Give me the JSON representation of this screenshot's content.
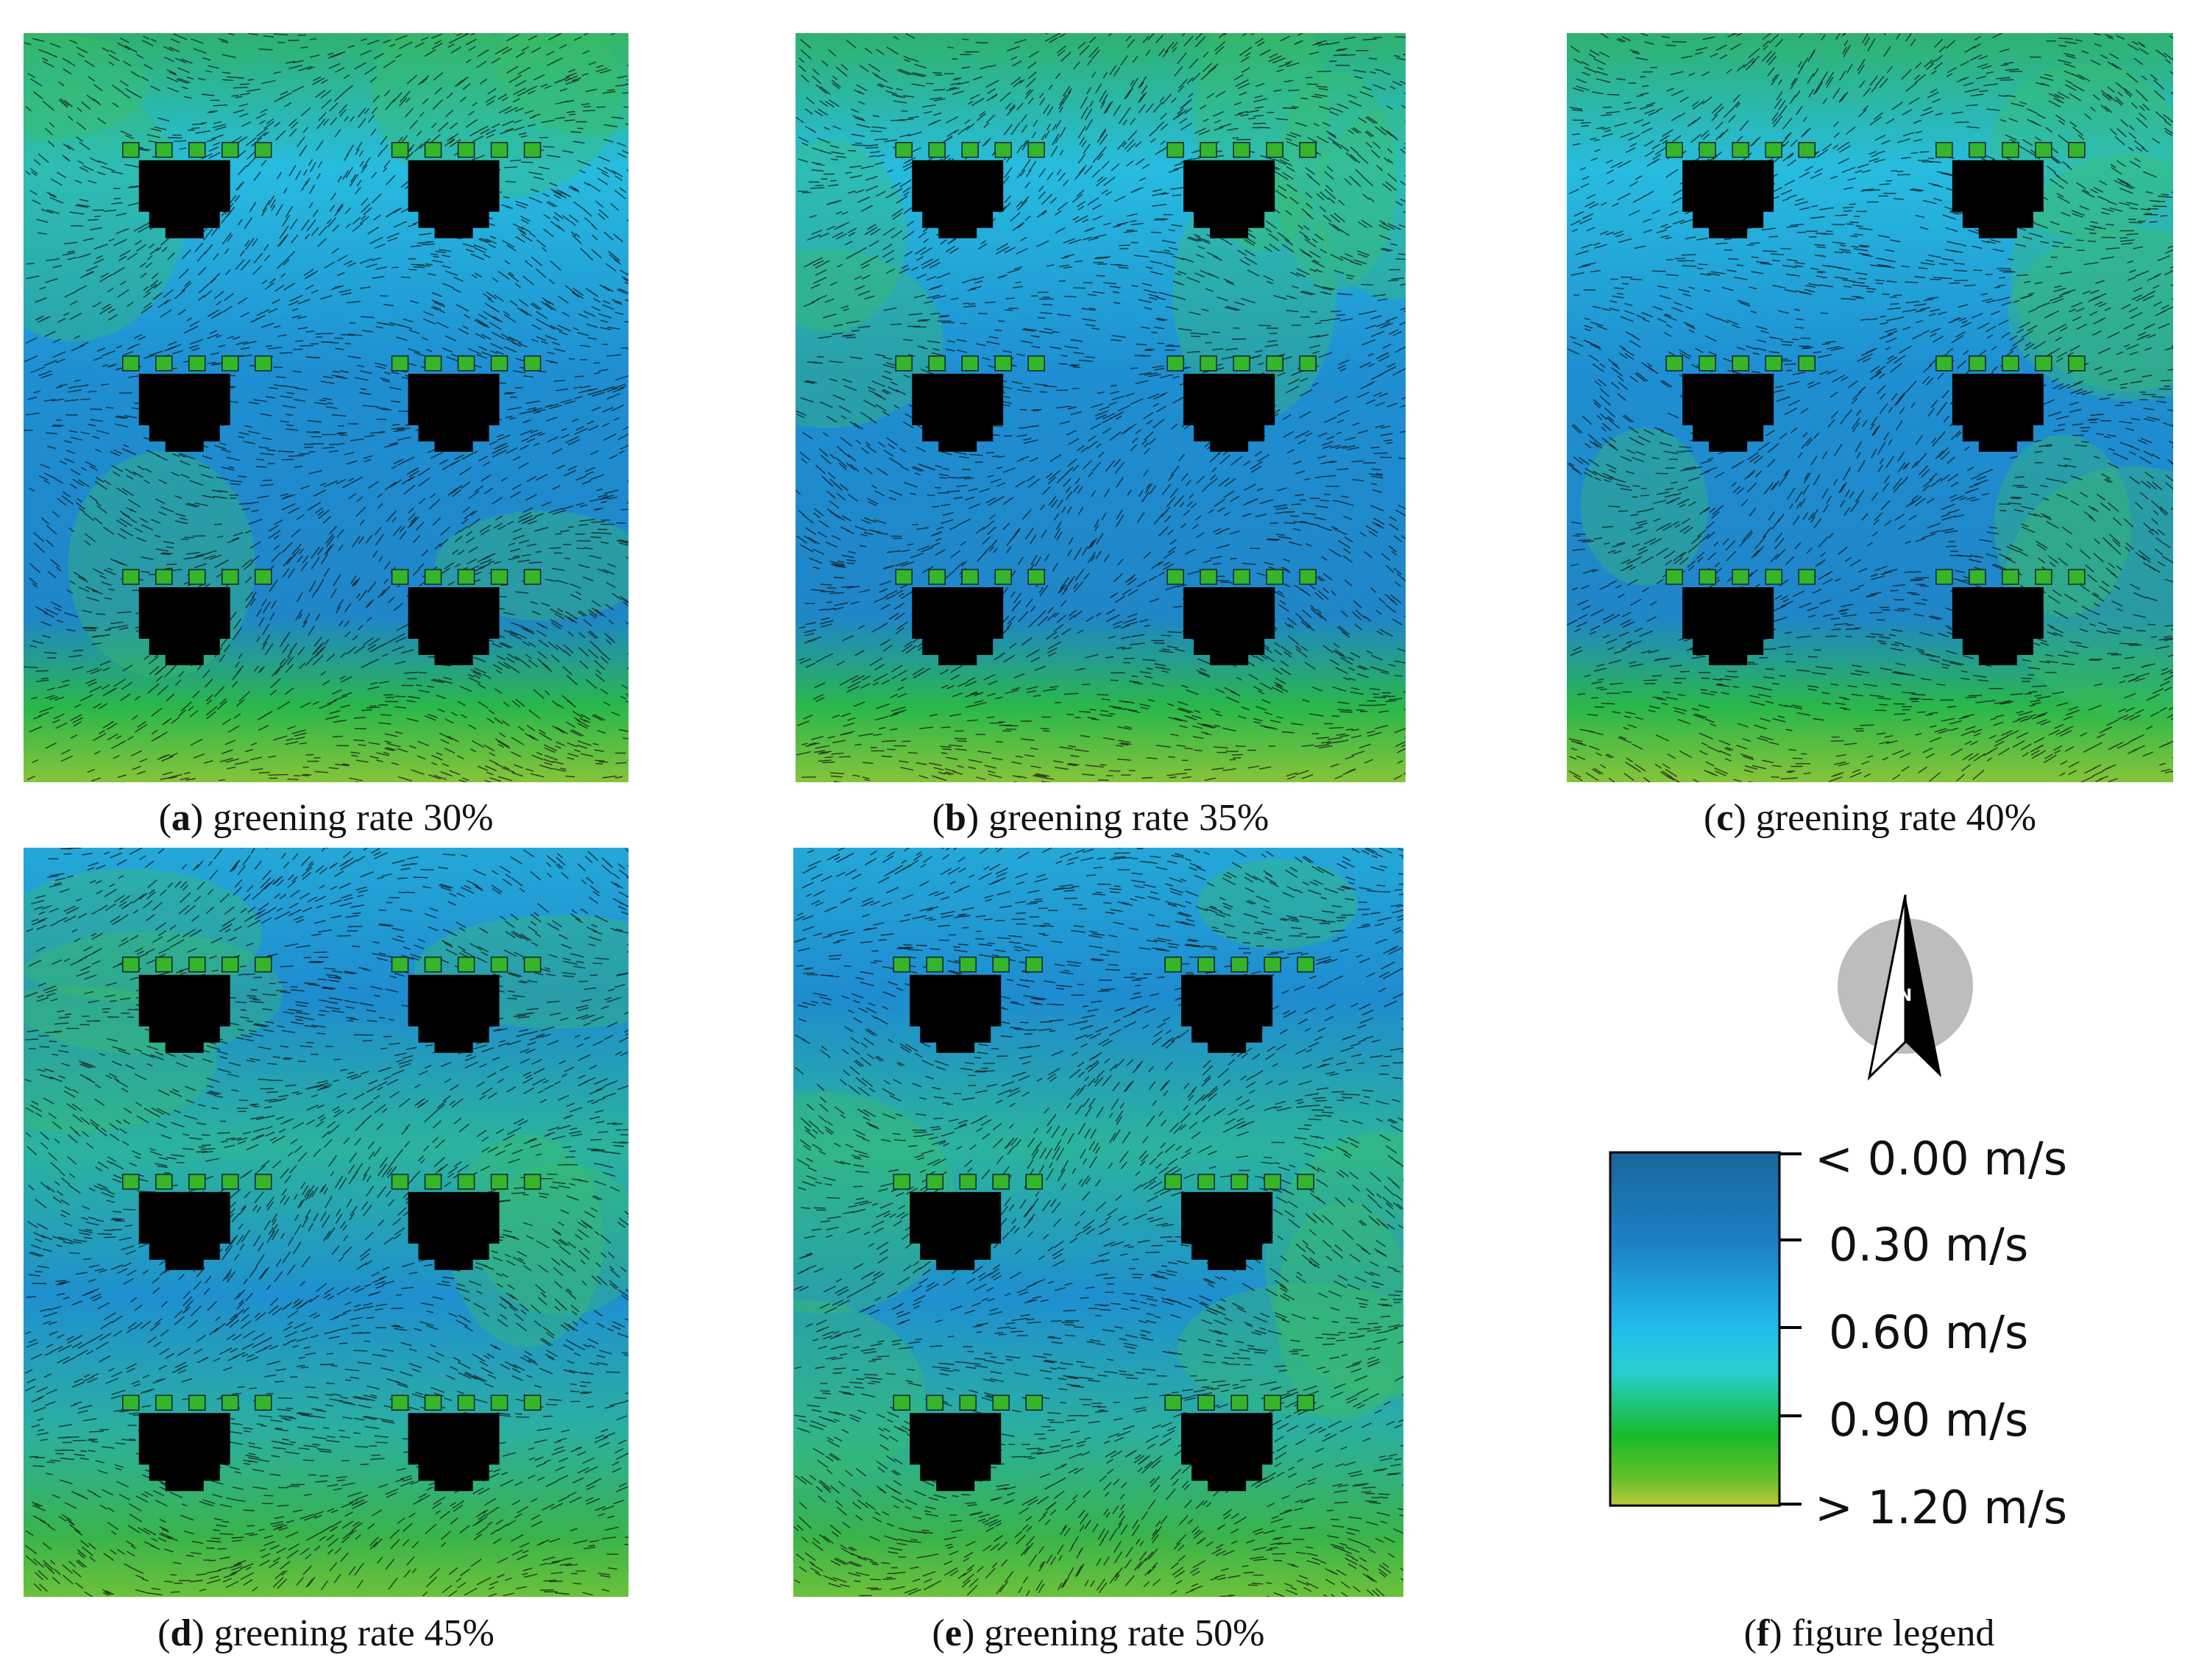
{
  "panels": [
    {
      "letter": "a",
      "caption": "greening rate 30%",
      "greening_rate": 30
    },
    {
      "letter": "b",
      "caption": "greening rate 35%",
      "greening_rate": 35
    },
    {
      "letter": "c",
      "caption": "greening rate 40%",
      "greening_rate": 40
    },
    {
      "letter": "d",
      "caption": "greening rate 45%",
      "greening_rate": 45
    },
    {
      "letter": "e",
      "caption": "greening rate 50%",
      "greening_rate": 50
    }
  ],
  "legend": {
    "letter": "f",
    "caption": "figure legend",
    "labels": [
      "< 0.00 m/s",
      "0.30  m/s",
      "0.60  m/s",
      "0.90  m/s",
      "> 1.20 m/s"
    ],
    "colors": [
      "#1a6aa0",
      "#1e88d0",
      "#22c2ee",
      "#1fc038",
      "#a8c830"
    ]
  },
  "compass": {
    "label": "N"
  }
}
